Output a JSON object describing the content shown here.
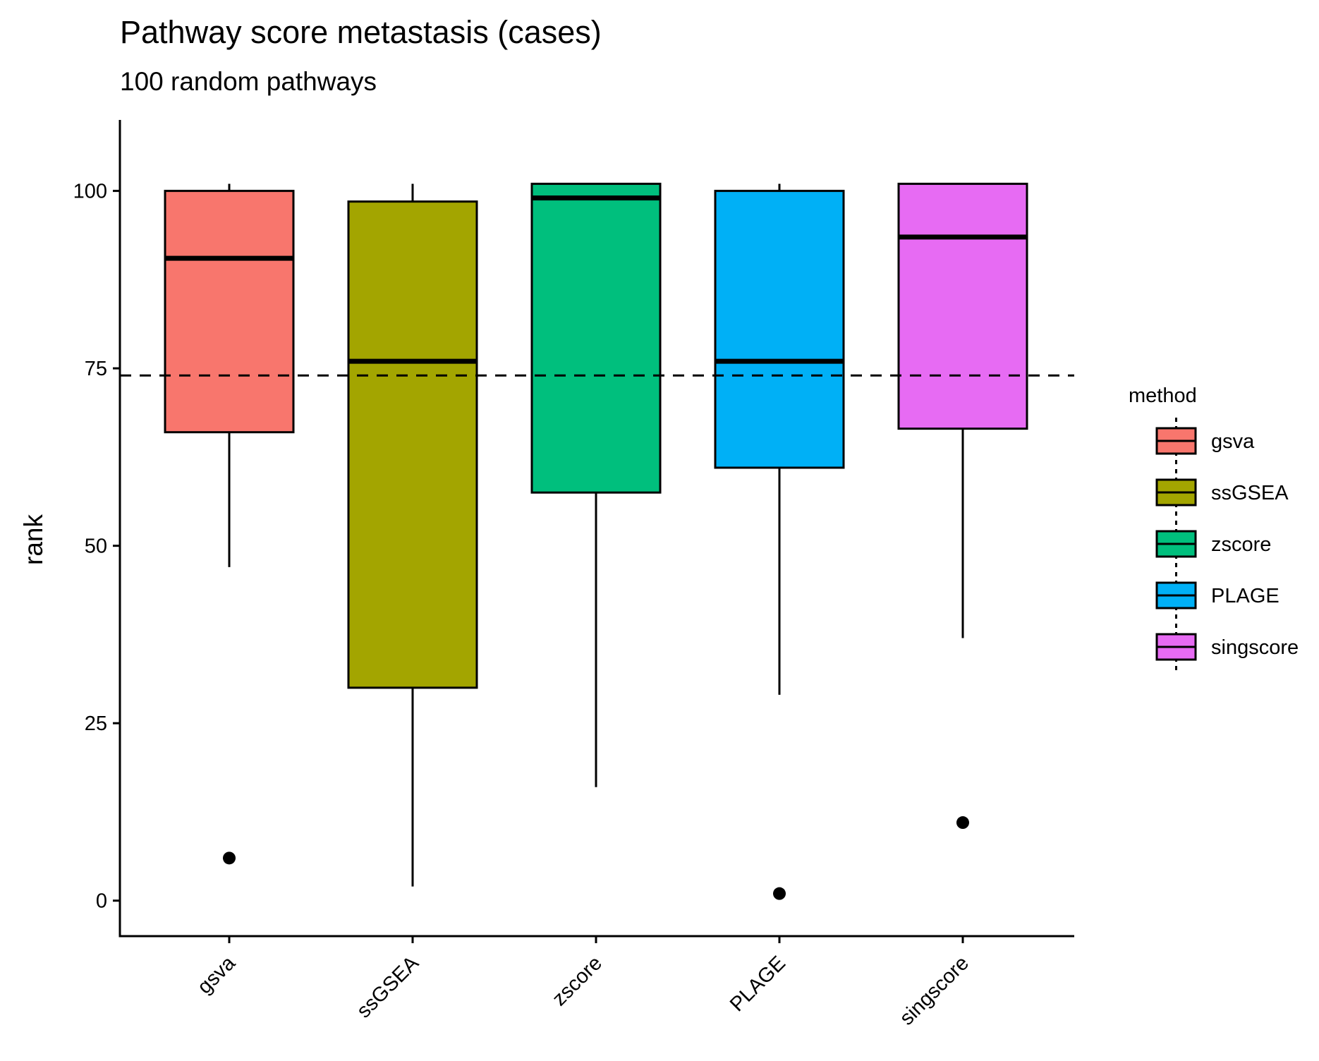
{
  "chart_data": {
    "type": "box",
    "title": "Pathway score metastasis (cases)",
    "subtitle": "100 random pathways",
    "xlabel": "",
    "ylabel": "rank",
    "ylim": [
      -5,
      110
    ],
    "yticks": [
      0,
      25,
      50,
      75,
      100
    ],
    "reference_line": {
      "y": 74,
      "style": "dashed",
      "color": "#000000"
    },
    "legend": {
      "title": "method",
      "position": "right"
    },
    "categories": [
      "gsva",
      "ssGSEA",
      "zscore",
      "PLAGE",
      "singscore"
    ],
    "boxes": [
      {
        "name": "gsva",
        "color": "#F8766D",
        "whisker_low": 47,
        "q1": 66,
        "median": 90.5,
        "q3": 100,
        "whisker_high": 101,
        "outliers": [
          6
        ]
      },
      {
        "name": "ssGSEA",
        "color": "#A3A500",
        "whisker_low": 2,
        "q1": 30,
        "median": 76,
        "q3": 98.5,
        "whisker_high": 101,
        "outliers": []
      },
      {
        "name": "zscore",
        "color": "#00BF7D",
        "whisker_low": 16,
        "q1": 57.5,
        "median": 99,
        "q3": 101,
        "whisker_high": 101,
        "outliers": []
      },
      {
        "name": "PLAGE",
        "color": "#00B0F6",
        "whisker_low": 29,
        "q1": 61,
        "median": 76,
        "q3": 100,
        "whisker_high": 101,
        "outliers": [
          1
        ]
      },
      {
        "name": "singscore",
        "color": "#E76BF3",
        "whisker_low": 37,
        "q1": 66.5,
        "median": 93.5,
        "q3": 101,
        "whisker_high": 101,
        "outliers": [
          11
        ]
      }
    ]
  }
}
